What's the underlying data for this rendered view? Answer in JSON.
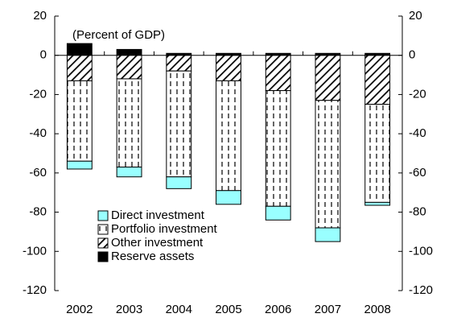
{
  "chart_data": {
    "type": "stacked-bar",
    "annotation": "(Percent of GDP)",
    "categories": [
      "2002",
      "2003",
      "2004",
      "2005",
      "2006",
      "2007",
      "2008"
    ],
    "series": [
      {
        "name": "Direct investment",
        "color": "#99ffff",
        "pattern": "solid",
        "values": [
          -4,
          -5,
          -6,
          -7,
          -7,
          -7,
          -1.5
        ]
      },
      {
        "name": "Portfolio investment",
        "color": "#ffffff",
        "pattern": "dashes",
        "values": [
          -41,
          -45,
          -54,
          -56,
          -59,
          -65,
          -50
        ]
      },
      {
        "name": "Other investment",
        "color": "#ffffff",
        "pattern": "hatch",
        "values": [
          -13,
          -12,
          -8,
          -13,
          -18,
          -23,
          -25
        ]
      },
      {
        "name": "Reserve assets",
        "color": "#000000",
        "pattern": "solid",
        "values": [
          6,
          3,
          1,
          1,
          1,
          1,
          1
        ]
      }
    ],
    "stack_order": [
      3,
      2,
      1,
      0
    ],
    "ylim": [
      -120,
      20
    ],
    "yticks": [
      -120,
      -100,
      -80,
      -60,
      -40,
      -20,
      0,
      20
    ],
    "y2lim": [
      -120,
      20
    ],
    "y2ticks": [
      -120,
      -100,
      -80,
      -60,
      -40,
      -20,
      0,
      20
    ]
  }
}
